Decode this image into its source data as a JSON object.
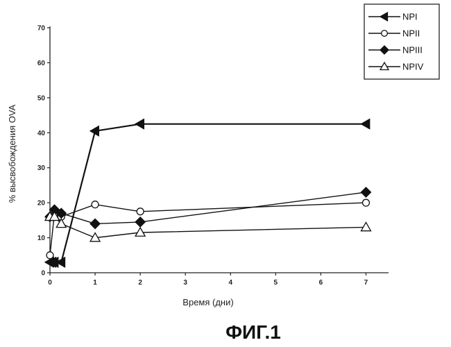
{
  "figure_caption": "ФИГ.1",
  "chart_data": {
    "type": "line",
    "title": "",
    "xlabel": "Время (дни)",
    "ylabel": "% высвобождения OVA",
    "xlim": [
      0,
      7.5
    ],
    "ylim": [
      0,
      70
    ],
    "x_ticks": [
      0,
      1,
      2,
      3,
      4,
      5,
      6,
      7
    ],
    "y_ticks": [
      0,
      10,
      20,
      30,
      40,
      50,
      60,
      70
    ],
    "grid": false,
    "legend_position": "top-right",
    "series": [
      {
        "name": "NPI",
        "marker": "triangle-left",
        "filled": true,
        "x": [
          0,
          0.05,
          0.1,
          0.25,
          1,
          2,
          7
        ],
        "y": [
          3,
          3,
          3,
          3,
          40.5,
          42.5,
          42.5
        ]
      },
      {
        "name": "NPII",
        "marker": "circle",
        "filled": false,
        "x": [
          0,
          0.1,
          0.25,
          1,
          2,
          7
        ],
        "y": [
          5,
          17,
          16,
          19.5,
          17.5,
          20
        ]
      },
      {
        "name": "NPIII",
        "marker": "diamond",
        "filled": true,
        "x": [
          0,
          0.1,
          0.25,
          1,
          2,
          7
        ],
        "y": [
          16,
          18,
          17,
          14,
          14.5,
          23
        ]
      },
      {
        "name": "NPIV",
        "marker": "triangle-up",
        "filled": false,
        "x": [
          0,
          0.1,
          0.25,
          1,
          2,
          7
        ],
        "y": [
          16,
          16,
          14,
          10,
          11.5,
          13
        ]
      }
    ]
  }
}
